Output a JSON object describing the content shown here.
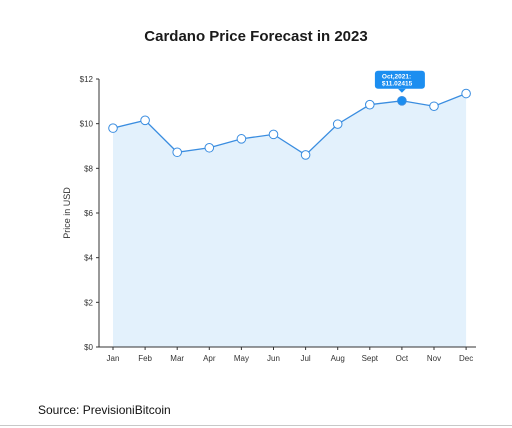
{
  "title": "Cardano Price Forecast in 2023",
  "source": "Source: PrevisioniBitcoin",
  "colors": {
    "line": "#3a8de0",
    "area": "#e3f1fc",
    "point_fill": "#ffffff",
    "highlight": "#1c8ef0",
    "axis": "#333333"
  },
  "chart_data": {
    "type": "area",
    "title": "Cardano Price Forecast in 2023",
    "ylabel": "Price in USD",
    "xlabel": "",
    "categories": [
      "Jan",
      "Feb",
      "Mar",
      "Apr",
      "May",
      "Jun",
      "Jul",
      "Aug",
      "Sept",
      "Oct",
      "Nov",
      "Dec"
    ],
    "values": [
      9.8,
      10.15,
      8.72,
      8.92,
      9.32,
      9.52,
      8.6,
      9.98,
      10.85,
      11.02415,
      10.78,
      11.35
    ],
    "ylim": [
      0,
      12
    ],
    "yticks": [
      0,
      2,
      4,
      6,
      8,
      10,
      12
    ],
    "ytick_labels": [
      "$0",
      "$2",
      "$4",
      "$6",
      "$8",
      "$10",
      "$12"
    ],
    "highlight_index": 9,
    "annotation": {
      "line1": "Oct,2021:",
      "line2": "$11.02415"
    },
    "grid": false
  }
}
